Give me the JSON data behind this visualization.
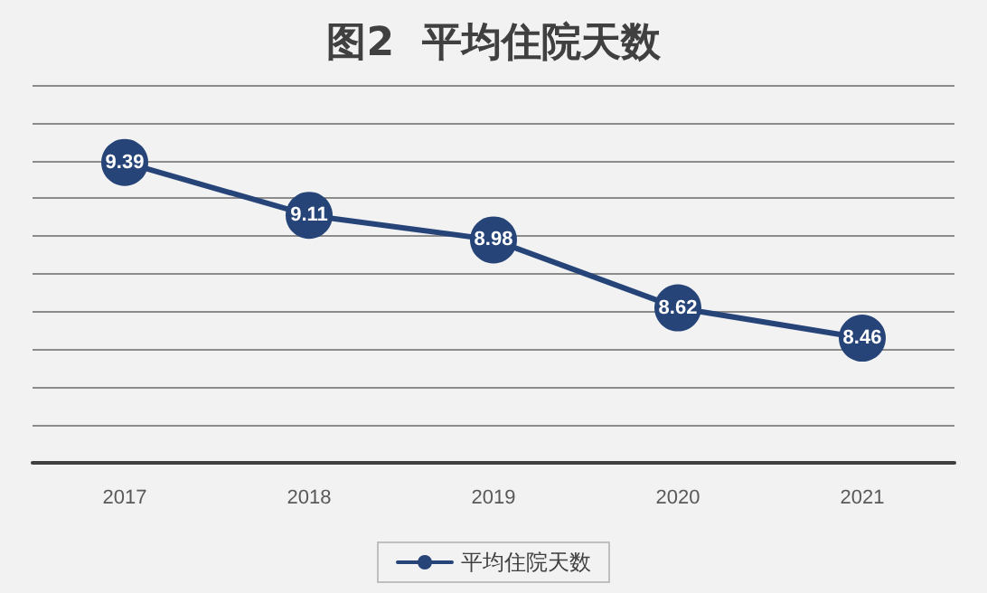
{
  "chart_data": {
    "type": "line",
    "title": "图2  平均住院天数",
    "categories": [
      "2017",
      "2018",
      "2019",
      "2020",
      "2021"
    ],
    "series": [
      {
        "name": "平均住院天数",
        "color": "#264478",
        "values": [
          9.39,
          9.11,
          8.98,
          8.62,
          8.46
        ]
      }
    ],
    "ylim": [
      7.8,
      9.8
    ],
    "yticks": [
      {
        "value": 7.8,
        "label": null
      },
      {
        "value": 8.0,
        "label": null
      },
      {
        "value": 8.2,
        "label": null
      },
      {
        "value": 8.4,
        "label": null
      },
      {
        "value": 8.6,
        "label": null
      },
      {
        "value": 8.8,
        "label": null
      },
      {
        "value": 9.0,
        "label": null
      },
      {
        "value": 9.2,
        "label": null
      },
      {
        "value": 9.4,
        "label": null
      },
      {
        "value": 9.6,
        "label": null
      },
      {
        "value": 9.8,
        "label": null
      }
    ],
    "tick_labels": "x",
    "grid": "y",
    "legend": "bottom",
    "marker": "circle",
    "line_style": "solid",
    "data_labels": true
  }
}
